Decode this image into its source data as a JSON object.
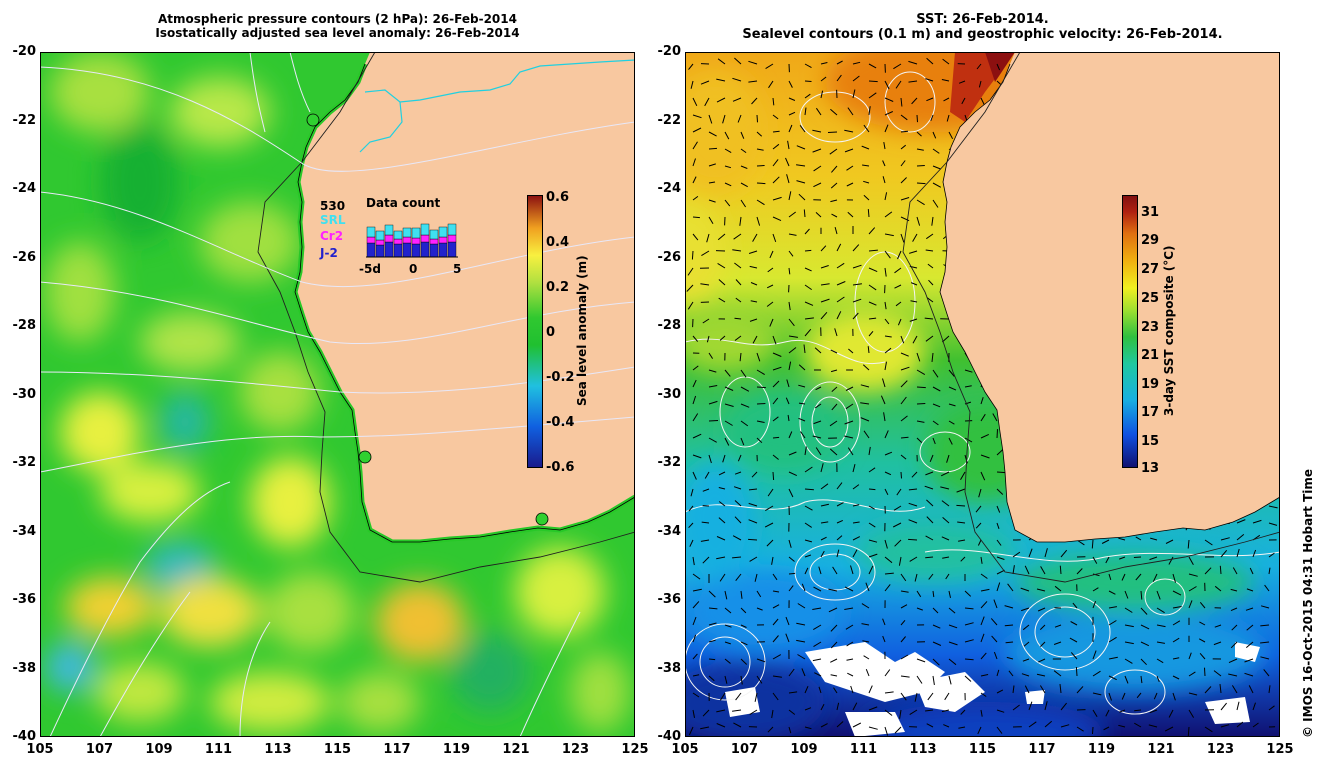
{
  "left_map": {
    "title_line1": "Atmospheric pressure contours (2 hPa): 26-Feb-2014",
    "title_line2": "Isostatically adjusted sea level anomaly: 26-Feb-2014",
    "y_ticks": [
      "-20",
      "-22",
      "-24",
      "-26",
      "-28",
      "-30",
      "-32",
      "-34",
      "-36",
      "-38",
      "-40"
    ],
    "x_ticks": [
      "105",
      "107",
      "109",
      "111",
      "113",
      "115",
      "117",
      "119",
      "121",
      "123",
      "125"
    ],
    "colorbar": {
      "title": "Sea level anomaly (m)",
      "ticks": [
        "0.6",
        "0.4",
        "0.2",
        "0",
        "-0.2",
        "-0.4",
        "-0.6"
      ],
      "range": [
        -0.6,
        0.6
      ]
    },
    "data_count": {
      "title": "Data count",
      "total": "530",
      "series": [
        {
          "name": "SRL",
          "color": "#3fe0f0"
        },
        {
          "name": "Cr2",
          "color": "#ff22ff"
        },
        {
          "name": "J-2",
          "color": "#2222cc"
        }
      ],
      "x_ticks": [
        "-5d",
        "0",
        "5"
      ]
    }
  },
  "right_map": {
    "title_line1": "SST: 26-Feb-2014.",
    "title_line2": "Sealevel contours (0.1 m) and geostrophic velocity: 26-Feb-2014.",
    "y_ticks": [
      "-20",
      "-22",
      "-24",
      "-26",
      "-28",
      "-30",
      "-32",
      "-34",
      "-36",
      "-38",
      "-40"
    ],
    "x_ticks": [
      "105",
      "107",
      "109",
      "111",
      "113",
      "115",
      "117",
      "119",
      "121",
      "123",
      "125"
    ],
    "colorbar": {
      "title": "3-day SST composite (°C)",
      "ticks": [
        "31",
        "29",
        "27",
        "25",
        "23",
        "21",
        "19",
        "17",
        "15",
        "13"
      ],
      "range": [
        13,
        32
      ]
    }
  },
  "copyright": "© IMOS 16-Oct-2015 04:31 Hobart Time",
  "colors": {
    "land": "#f8c8a0",
    "sla_ramp": [
      "#1a1a8c",
      "#1060e0",
      "#20c0e0",
      "#20c020",
      "#a0e040",
      "#f8f040",
      "#f0a020",
      "#c04010",
      "#8c1010"
    ],
    "sst_ramp": [
      "#101070",
      "#1050e0",
      "#18b0e0",
      "#20c8a0",
      "#30c040",
      "#a0e030",
      "#f0f020",
      "#f0b010",
      "#e07010",
      "#b02010",
      "#801010"
    ]
  }
}
